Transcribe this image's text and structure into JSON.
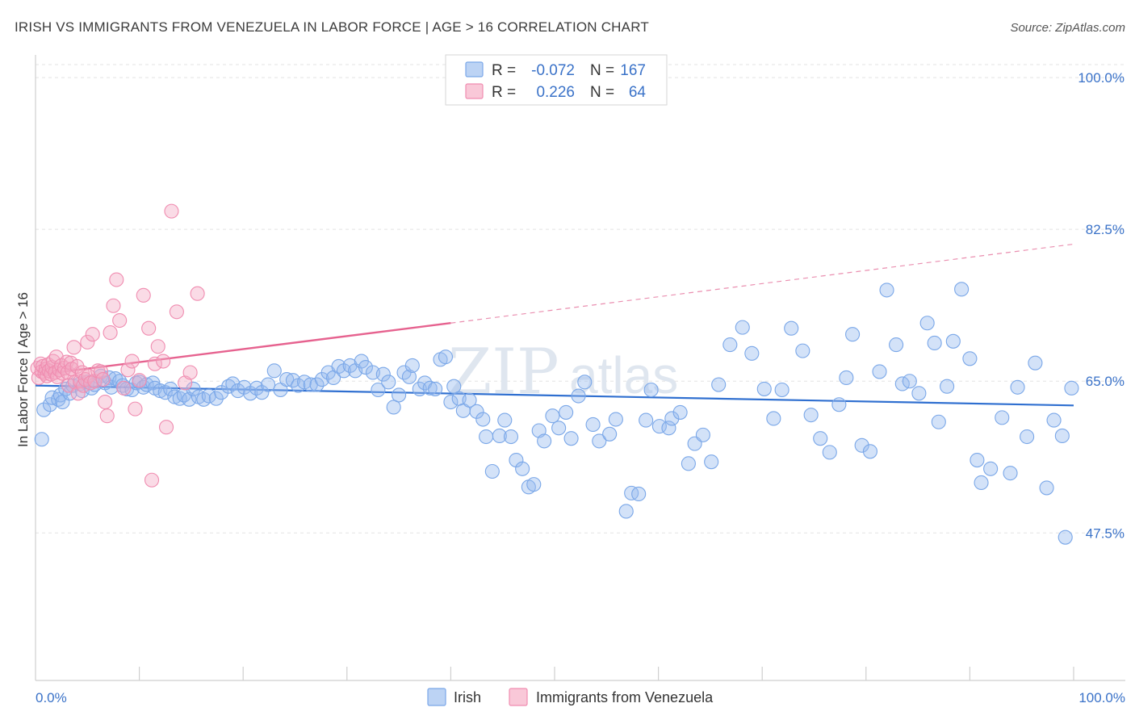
{
  "title": "IRISH VS IMMIGRANTS FROM VENEZUELA IN LABOR FORCE | AGE > 16 CORRELATION CHART",
  "source": "Source: ZipAtlas.com",
  "watermark": {
    "zip": "ZIP",
    "atlas": "atlas"
  },
  "legend": {
    "rows": [
      {
        "r_label": "R =",
        "r_value": "-0.072",
        "n_label": "N =",
        "n_value": "167",
        "color": "#7aa7e8"
      },
      {
        "r_label": "R =",
        "r_value": "0.226",
        "n_label": "N =",
        "n_value": "64",
        "color": "#f08cb0"
      }
    ]
  },
  "bottom_legend": [
    {
      "label": "Irish",
      "color": "#7aa7e8"
    },
    {
      "label": "Immigrants from Venezuela",
      "color": "#f08cb0"
    }
  ],
  "chart_data": {
    "type": "scatter",
    "title": "IRISH VS IMMIGRANTS FROM VENEZUELA IN LABOR FORCE | AGE > 16 CORRELATION CHART",
    "xlabel": "",
    "ylabel": "In Labor Force | Age > 16",
    "xlim": [
      0,
      100
    ],
    "ylim": [
      30.5,
      101.5
    ],
    "x_tick_labels": [
      {
        "value": 0,
        "label": "0.0%"
      },
      {
        "value": 100,
        "label": "100.0%"
      }
    ],
    "y_tick_labels": [
      {
        "value": 100,
        "label": "100.0%"
      },
      {
        "value": 82.5,
        "label": "82.5%"
      },
      {
        "value": 65,
        "label": "65.0%"
      },
      {
        "value": 47.5,
        "label": "47.5%"
      }
    ],
    "grid": true,
    "legend_position": "top-center",
    "series": [
      {
        "name": "Irish",
        "color": "#7aa7e8",
        "trend": {
          "x": [
            0,
            100
          ],
          "y": [
            64.5,
            62.2
          ],
          "style": "solid"
        },
        "points": [
          [
            0.6,
            58.3
          ],
          [
            0.8,
            61.7
          ],
          [
            1.4,
            62.3
          ],
          [
            1.6,
            63.1
          ],
          [
            2.2,
            62.9
          ],
          [
            2.4,
            63.4
          ],
          [
            2.6,
            62.6
          ],
          [
            2.9,
            64.1
          ],
          [
            3.3,
            63.6
          ],
          [
            3.6,
            64.5
          ],
          [
            4.3,
            64.7
          ],
          [
            4.5,
            63.9
          ],
          [
            5.0,
            64.9
          ],
          [
            5.4,
            64.2
          ],
          [
            5.7,
            64.6
          ],
          [
            6.3,
            65.6
          ],
          [
            6.7,
            64.8
          ],
          [
            7.1,
            65.4
          ],
          [
            7.3,
            64.3
          ],
          [
            7.7,
            65.3
          ],
          [
            8.1,
            65.0
          ],
          [
            8.4,
            64.5
          ],
          [
            8.8,
            64.1
          ],
          [
            9.3,
            64.0
          ],
          [
            9.7,
            64.8
          ],
          [
            10.0,
            64.9
          ],
          [
            10.4,
            64.3
          ],
          [
            10.7,
            64.6
          ],
          [
            11.3,
            64.8
          ],
          [
            11.5,
            64.2
          ],
          [
            12.0,
            63.9
          ],
          [
            12.5,
            63.7
          ],
          [
            13.0,
            64.1
          ],
          [
            13.4,
            63.2
          ],
          [
            13.9,
            63.0
          ],
          [
            14.3,
            63.4
          ],
          [
            14.8,
            62.9
          ],
          [
            15.2,
            64.1
          ],
          [
            15.7,
            63.2
          ],
          [
            16.2,
            62.9
          ],
          [
            16.7,
            63.3
          ],
          [
            17.4,
            63.0
          ],
          [
            17.9,
            63.7
          ],
          [
            18.6,
            64.4
          ],
          [
            19.0,
            64.7
          ],
          [
            19.5,
            63.9
          ],
          [
            20.1,
            64.3
          ],
          [
            20.7,
            63.6
          ],
          [
            21.3,
            64.2
          ],
          [
            21.8,
            63.7
          ],
          [
            22.4,
            64.6
          ],
          [
            23.0,
            66.2
          ],
          [
            23.6,
            64.0
          ],
          [
            24.2,
            65.2
          ],
          [
            24.8,
            65.1
          ],
          [
            25.3,
            64.5
          ],
          [
            25.9,
            64.9
          ],
          [
            26.5,
            64.6
          ],
          [
            27.1,
            64.6
          ],
          [
            27.6,
            65.2
          ],
          [
            28.2,
            66.0
          ],
          [
            28.7,
            65.4
          ],
          [
            29.2,
            66.7
          ],
          [
            29.7,
            66.2
          ],
          [
            30.3,
            66.8
          ],
          [
            30.8,
            66.2
          ],
          [
            31.4,
            67.3
          ],
          [
            31.8,
            66.6
          ],
          [
            32.5,
            66.0
          ],
          [
            33.0,
            64.0
          ],
          [
            33.5,
            65.8
          ],
          [
            34.0,
            64.9
          ],
          [
            34.5,
            62.0
          ],
          [
            35.0,
            63.4
          ],
          [
            35.5,
            66.0
          ],
          [
            36.0,
            65.5
          ],
          [
            36.3,
            66.8
          ],
          [
            37.0,
            64.1
          ],
          [
            37.5,
            64.8
          ],
          [
            38.0,
            64.2
          ],
          [
            38.5,
            64.1
          ],
          [
            39.0,
            67.5
          ],
          [
            39.5,
            67.8
          ],
          [
            40.0,
            62.6
          ],
          [
            40.3,
            64.4
          ],
          [
            40.8,
            63.0
          ],
          [
            41.2,
            61.6
          ],
          [
            41.8,
            62.8
          ],
          [
            42.5,
            61.5
          ],
          [
            43.1,
            60.6
          ],
          [
            43.4,
            58.6
          ],
          [
            44.0,
            54.6
          ],
          [
            44.7,
            58.7
          ],
          [
            45.2,
            60.5
          ],
          [
            45.8,
            58.6
          ],
          [
            46.3,
            55.9
          ],
          [
            46.9,
            54.9
          ],
          [
            47.5,
            52.8
          ],
          [
            48.0,
            53.1
          ],
          [
            48.5,
            59.3
          ],
          [
            49.0,
            58.1
          ],
          [
            49.8,
            61.0
          ],
          [
            50.4,
            59.6
          ],
          [
            51.1,
            61.4
          ],
          [
            51.6,
            58.4
          ],
          [
            52.3,
            63.3
          ],
          [
            52.9,
            64.9
          ],
          [
            53.7,
            60.0
          ],
          [
            54.3,
            58.1
          ],
          [
            55.3,
            58.9
          ],
          [
            55.9,
            60.6
          ],
          [
            56.9,
            50.0
          ],
          [
            57.4,
            52.1
          ],
          [
            58.1,
            52.0
          ],
          [
            58.8,
            60.5
          ],
          [
            59.3,
            64.0
          ],
          [
            60.1,
            59.8
          ],
          [
            61.0,
            59.6
          ],
          [
            61.3,
            60.7
          ],
          [
            62.1,
            61.4
          ],
          [
            62.9,
            55.5
          ],
          [
            63.5,
            57.8
          ],
          [
            64.3,
            58.8
          ],
          [
            65.1,
            55.7
          ],
          [
            65.8,
            64.6
          ],
          [
            66.9,
            69.2
          ],
          [
            68.1,
            71.2
          ],
          [
            69.0,
            68.2
          ],
          [
            70.2,
            64.1
          ],
          [
            71.1,
            60.7
          ],
          [
            71.9,
            64.0
          ],
          [
            72.8,
            71.1
          ],
          [
            73.9,
            68.5
          ],
          [
            74.7,
            61.1
          ],
          [
            75.6,
            58.4
          ],
          [
            76.5,
            56.8
          ],
          [
            77.4,
            62.3
          ],
          [
            78.1,
            65.4
          ],
          [
            78.7,
            70.4
          ],
          [
            79.6,
            57.6
          ],
          [
            80.4,
            56.9
          ],
          [
            81.3,
            66.1
          ],
          [
            82.0,
            75.5
          ],
          [
            82.9,
            69.2
          ],
          [
            83.5,
            64.7
          ],
          [
            84.2,
            65.0
          ],
          [
            85.1,
            63.6
          ],
          [
            85.9,
            71.7
          ],
          [
            86.6,
            69.4
          ],
          [
            87.0,
            60.3
          ],
          [
            87.8,
            64.4
          ],
          [
            88.4,
            69.6
          ],
          [
            89.2,
            75.6
          ],
          [
            90.0,
            67.6
          ],
          [
            90.7,
            55.9
          ],
          [
            91.1,
            53.3
          ],
          [
            92.0,
            54.9
          ],
          [
            93.1,
            60.8
          ],
          [
            93.9,
            54.4
          ],
          [
            94.6,
            64.3
          ],
          [
            95.5,
            58.6
          ],
          [
            96.3,
            67.1
          ],
          [
            97.4,
            52.7
          ],
          [
            98.1,
            60.5
          ],
          [
            98.9,
            58.7
          ],
          [
            99.2,
            47.0
          ],
          [
            99.8,
            64.2
          ]
        ]
      },
      {
        "name": "Immigrants from Venezuela",
        "color": "#f08cb0",
        "trend": {
          "x": [
            0,
            40
          ],
          "y": [
            65.7,
            71.7
          ],
          "style": "solid",
          "extension": {
            "x": [
              40,
              100
            ],
            "y": [
              71.7,
              80.8
            ],
            "style": "dashed"
          }
        },
        "points": [
          [
            0.2,
            66.5
          ],
          [
            0.3,
            65.4
          ],
          [
            0.5,
            67.0
          ],
          [
            0.6,
            66.1
          ],
          [
            0.7,
            66.7
          ],
          [
            0.9,
            65.9
          ],
          [
            1.0,
            66.4
          ],
          [
            1.1,
            65.6
          ],
          [
            1.2,
            66.9
          ],
          [
            1.3,
            66.2
          ],
          [
            1.5,
            65.8
          ],
          [
            1.6,
            66.6
          ],
          [
            1.7,
            67.3
          ],
          [
            1.9,
            66.0
          ],
          [
            2.0,
            67.8
          ],
          [
            2.1,
            65.5
          ],
          [
            2.3,
            66.3
          ],
          [
            2.5,
            66.8
          ],
          [
            2.6,
            65.9
          ],
          [
            2.8,
            66.5
          ],
          [
            3.0,
            67.2
          ],
          [
            3.1,
            66.0
          ],
          [
            3.2,
            64.5
          ],
          [
            3.4,
            67.1
          ],
          [
            3.5,
            66.4
          ],
          [
            3.7,
            68.9
          ],
          [
            3.8,
            64.9
          ],
          [
            4.0,
            66.7
          ],
          [
            4.1,
            63.6
          ],
          [
            4.3,
            65.0
          ],
          [
            4.5,
            66.0
          ],
          [
            4.6,
            64.5
          ],
          [
            4.8,
            65.2
          ],
          [
            5.0,
            69.5
          ],
          [
            5.1,
            65.6
          ],
          [
            5.3,
            64.8
          ],
          [
            5.5,
            70.4
          ],
          [
            5.7,
            65.0
          ],
          [
            6.0,
            66.2
          ],
          [
            6.3,
            66.1
          ],
          [
            6.5,
            65.2
          ],
          [
            6.7,
            62.6
          ],
          [
            6.9,
            61.0
          ],
          [
            7.2,
            70.6
          ],
          [
            7.5,
            73.7
          ],
          [
            7.8,
            76.7
          ],
          [
            8.1,
            72.0
          ],
          [
            8.5,
            64.2
          ],
          [
            8.9,
            66.3
          ],
          [
            9.3,
            67.3
          ],
          [
            9.6,
            61.8
          ],
          [
            10.0,
            65.1
          ],
          [
            10.4,
            74.9
          ],
          [
            10.9,
            71.1
          ],
          [
            11.2,
            53.6
          ],
          [
            11.5,
            67.0
          ],
          [
            11.8,
            69.0
          ],
          [
            12.3,
            67.3
          ],
          [
            12.6,
            59.7
          ],
          [
            13.1,
            84.6
          ],
          [
            13.6,
            73.0
          ],
          [
            14.4,
            64.8
          ],
          [
            14.9,
            66.0
          ],
          [
            15.6,
            75.1
          ]
        ]
      }
    ]
  }
}
